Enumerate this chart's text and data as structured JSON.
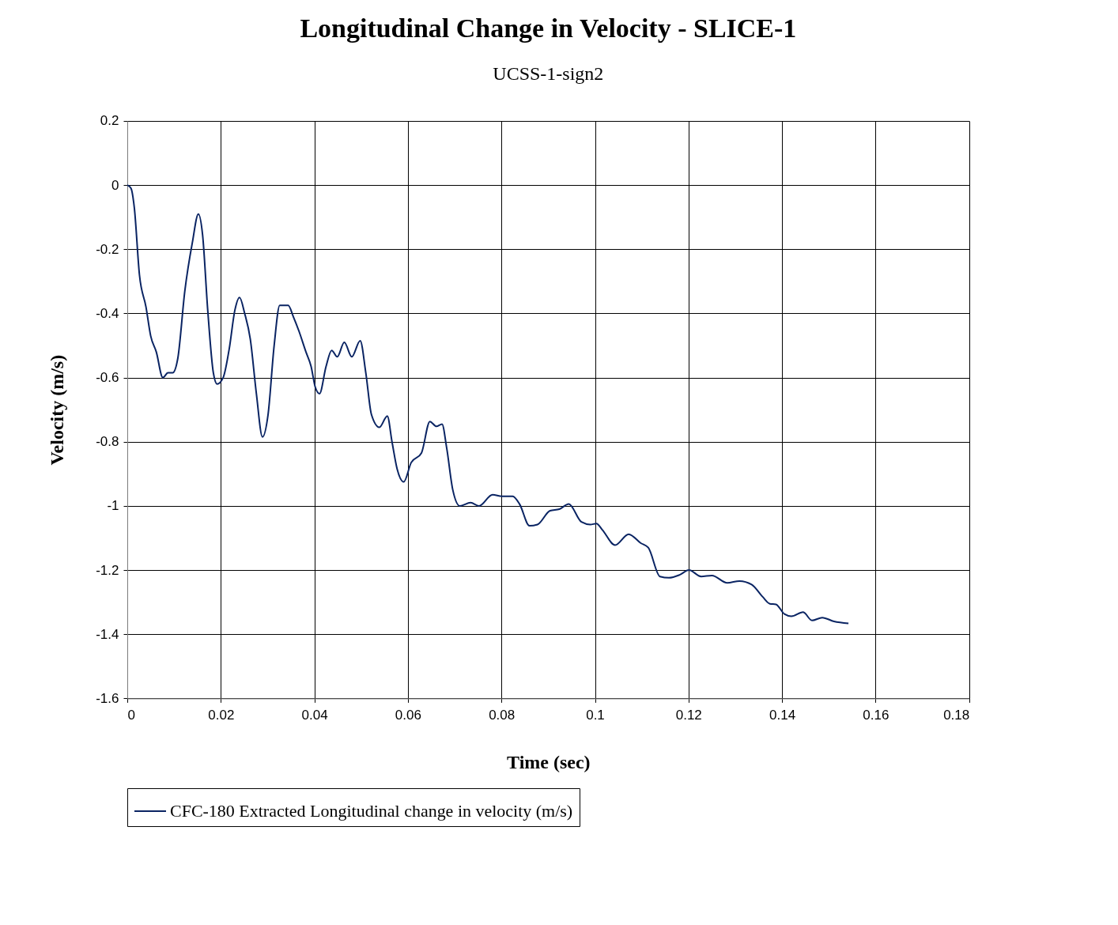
{
  "chart_data": {
    "type": "line",
    "title": "Longitudinal Change in Velocity - SLICE-1",
    "subtitle": "UCSS-1-sign2",
    "xlabel": "Time (sec)",
    "ylabel": "Velocity (m/s)",
    "xlim": [
      0,
      0.18
    ],
    "xticks": [
      0,
      0.02,
      0.04,
      0.06,
      0.08,
      0.1,
      0.12,
      0.14,
      0.16,
      0.18
    ],
    "ylim": [
      -1.6,
      0.2
    ],
    "yticks": [
      -1.6,
      -1.4,
      -1.2,
      -1,
      -0.8,
      -0.6,
      -0.4,
      -0.2,
      0,
      0.2
    ],
    "grid": true,
    "legend": "bottom",
    "marker": "none",
    "line_style": "solid",
    "x": [
      0,
      0.0008,
      0.0015,
      0.0026,
      0.004,
      0.005,
      0.0062,
      0.0076,
      0.0087,
      0.0097,
      0.0108,
      0.0123,
      0.0139,
      0.0152,
      0.0161,
      0.0172,
      0.0184,
      0.0192,
      0.0205,
      0.0218,
      0.023,
      0.024,
      0.0251,
      0.0263,
      0.0276,
      0.0289,
      0.0301,
      0.0314,
      0.0326,
      0.0344,
      0.0355,
      0.0367,
      0.0382,
      0.0393,
      0.0402,
      0.0411,
      0.0425,
      0.0437,
      0.0449,
      0.0464,
      0.048,
      0.0498,
      0.051,
      0.0522,
      0.0539,
      0.0556,
      0.0566,
      0.0577,
      0.0591,
      0.0607,
      0.0629,
      0.0647,
      0.0661,
      0.0673,
      0.0683,
      0.0696,
      0.0711,
      0.0734,
      0.0752,
      0.0781,
      0.0801,
      0.0824,
      0.0839,
      0.086,
      0.0877,
      0.0904,
      0.0924,
      0.0944,
      0.0971,
      0.099,
      0.1003,
      0.1016,
      0.1043,
      0.1072,
      0.1098,
      0.1114,
      0.1139,
      0.1158,
      0.1181,
      0.1201,
      0.1227,
      0.125,
      0.1283,
      0.1309,
      0.1335,
      0.1359,
      0.1374,
      0.1387,
      0.1405,
      0.142,
      0.1445,
      0.1464,
      0.1486,
      0.1511,
      0.1542
    ],
    "series": [
      {
        "name": "CFC-180 Extracted Longitudinal change in velocity (m/s)",
        "color": "#0a2463",
        "values": [
          0,
          -0.01,
          -0.07,
          -0.28,
          -0.38,
          -0.47,
          -0.52,
          -0.6,
          -0.585,
          -0.585,
          -0.54,
          -0.33,
          -0.18,
          -0.09,
          -0.155,
          -0.39,
          -0.585,
          -0.62,
          -0.6,
          -0.51,
          -0.39,
          -0.35,
          -0.4,
          -0.48,
          -0.65,
          -0.785,
          -0.715,
          -0.5,
          -0.375,
          -0.375,
          -0.41,
          -0.455,
          -0.52,
          -0.565,
          -0.63,
          -0.65,
          -0.565,
          -0.515,
          -0.535,
          -0.49,
          -0.535,
          -0.485,
          -0.585,
          -0.715,
          -0.755,
          -0.72,
          -0.8,
          -0.885,
          -0.925,
          -0.865,
          -0.835,
          -0.737,
          -0.752,
          -0.745,
          -0.82,
          -0.95,
          -1.0,
          -0.99,
          -1.0,
          -0.965,
          -0.97,
          -0.97,
          -0.995,
          -1.062,
          -1.058,
          -1.015,
          -1.01,
          -0.994,
          -1.05,
          -1.058,
          -1.055,
          -1.075,
          -1.122,
          -1.088,
          -1.116,
          -1.13,
          -1.22,
          -1.224,
          -1.215,
          -1.2,
          -1.22,
          -1.217,
          -1.24,
          -1.234,
          -1.245,
          -1.284,
          -1.305,
          -1.307,
          -1.337,
          -1.344,
          -1.331,
          -1.357,
          -1.348,
          -1.36,
          -1.366
        ]
      }
    ]
  }
}
